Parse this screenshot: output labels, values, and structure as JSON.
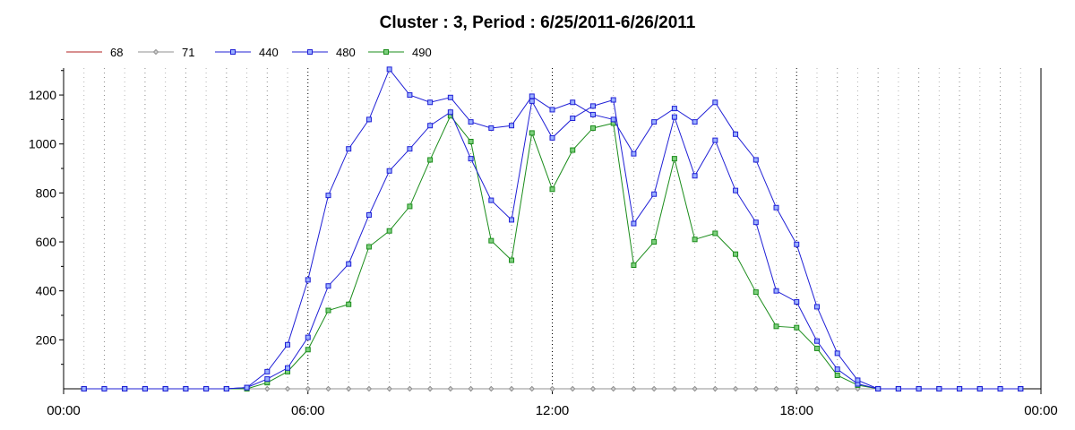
{
  "chart_data": {
    "type": "line",
    "title": "Cluster : 3, Period : 6/25/2011-6/26/2011",
    "xlabel": "",
    "ylabel": "",
    "x_tick_labels": [
      "00:00",
      "06:00",
      "12:00",
      "18:00",
      "00:00"
    ],
    "x_tick_hours": [
      0,
      6,
      12,
      18,
      24
    ],
    "xlim_hours": [
      0,
      24
    ],
    "y_ticks": [
      200,
      400,
      600,
      800,
      1000,
      1200
    ],
    "ylim": [
      0,
      1310
    ],
    "grid": "vertical dotted",
    "legend_position": "top-left",
    "x_hours": [
      0.5,
      1,
      1.5,
      2,
      2.5,
      3,
      3.5,
      4,
      4.5,
      5,
      5.5,
      6,
      6.5,
      7,
      7.5,
      8,
      8.5,
      9,
      9.5,
      10,
      10.5,
      11,
      11.5,
      12,
      12.5,
      13,
      13.5,
      14,
      14.5,
      15,
      15.5,
      16,
      16.5,
      17,
      17.5,
      18,
      18.5,
      19,
      19.5,
      20,
      20.5,
      21,
      21.5,
      22,
      22.5,
      23,
      23.5
    ],
    "series": [
      {
        "name": "68",
        "color": "#b22222",
        "marker": "none",
        "values": [
          0,
          0,
          0,
          0,
          0,
          0,
          0,
          0,
          0,
          0,
          0,
          0,
          0,
          0,
          0,
          0,
          0,
          0,
          0,
          0,
          0,
          0,
          0,
          0,
          0,
          0,
          0,
          0,
          0,
          0,
          0,
          0,
          0,
          0,
          0,
          0,
          0,
          0,
          0,
          0,
          0,
          0,
          0,
          0,
          0,
          0,
          0
        ]
      },
      {
        "name": "71",
        "color": "#909090",
        "marker": "diamond",
        "values": [
          0,
          0,
          0,
          0,
          0,
          0,
          0,
          0,
          0,
          0,
          0,
          0,
          0,
          0,
          0,
          0,
          0,
          0,
          0,
          0,
          0,
          0,
          0,
          0,
          0,
          0,
          0,
          0,
          0,
          0,
          0,
          0,
          0,
          0,
          0,
          0,
          0,
          0,
          0,
          0,
          0,
          0,
          0,
          0,
          0,
          0,
          0
        ]
      },
      {
        "name": "440",
        "color": "#1f1fd6",
        "marker": "square",
        "values": [
          0,
          0,
          0,
          0,
          0,
          0,
          0,
          0,
          5,
          70,
          180,
          445,
          790,
          980,
          1100,
          1305,
          1200,
          1170,
          1190,
          1090,
          1065,
          1075,
          1195,
          1140,
          1170,
          1120,
          1100,
          960,
          1090,
          1145,
          1090,
          1170,
          1040,
          935,
          740,
          590,
          335,
          145,
          35,
          0,
          0,
          0,
          0,
          0,
          0,
          0,
          0
        ]
      },
      {
        "name": "480",
        "color": "#1f1fd6",
        "marker": "square",
        "values": [
          0,
          0,
          0,
          0,
          0,
          0,
          0,
          0,
          5,
          40,
          85,
          210,
          420,
          510,
          710,
          890,
          980,
          1075,
          1130,
          940,
          770,
          690,
          1175,
          1025,
          1105,
          1155,
          1180,
          675,
          795,
          1110,
          870,
          1015,
          810,
          680,
          400,
          355,
          195,
          80,
          20,
          0,
          0,
          0,
          0,
          0,
          0,
          0,
          0
        ]
      },
      {
        "name": "490",
        "color": "#1a8c1a",
        "marker": "square",
        "values": [
          0,
          0,
          0,
          0,
          0,
          0,
          0,
          0,
          0,
          25,
          70,
          160,
          320,
          345,
          580,
          645,
          745,
          935,
          1115,
          1010,
          605,
          525,
          1045,
          815,
          975,
          1065,
          1085,
          505,
          600,
          940,
          610,
          635,
          550,
          395,
          255,
          250,
          165,
          55,
          15,
          0,
          0,
          0,
          0,
          0,
          0,
          0,
          0
        ]
      }
    ]
  }
}
